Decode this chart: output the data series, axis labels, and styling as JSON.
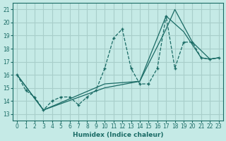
{
  "xlabel": "Humidex (Indice chaleur)",
  "ylabel": "",
  "bg_color": "#c5eae6",
  "grid_color": "#a8ceca",
  "line_color": "#1a6b65",
  "xlim": [
    -0.5,
    23.5
  ],
  "ylim": [
    12.5,
    21.5
  ],
  "xticks": [
    0,
    1,
    2,
    3,
    4,
    5,
    6,
    7,
    8,
    9,
    10,
    11,
    12,
    13,
    14,
    15,
    16,
    17,
    18,
    19,
    20,
    21,
    22,
    23
  ],
  "yticks": [
    13,
    14,
    15,
    16,
    17,
    18,
    19,
    20,
    21
  ],
  "series1_x": [
    0,
    1,
    2,
    3,
    4,
    5,
    6,
    7,
    8,
    9,
    10,
    11,
    12,
    13,
    14,
    15,
    16,
    17,
    18,
    19,
    20,
    21,
    22,
    23
  ],
  "series1_y": [
    16.0,
    14.8,
    14.3,
    13.3,
    14.0,
    14.3,
    14.3,
    13.7,
    14.3,
    14.8,
    16.5,
    18.8,
    19.5,
    16.5,
    15.3,
    15.3,
    16.5,
    20.5,
    16.5,
    18.5,
    18.5,
    17.3,
    17.2,
    17.3
  ],
  "series2_x": [
    0,
    3,
    10,
    14,
    17,
    19,
    21,
    22,
    23
  ],
  "series2_y": [
    16.0,
    13.3,
    15.3,
    15.5,
    20.5,
    19.3,
    17.3,
    17.2,
    17.3
  ],
  "series3_x": [
    0,
    3,
    10,
    14,
    17,
    18,
    20,
    22,
    23
  ],
  "series3_y": [
    16.0,
    13.3,
    15.0,
    15.5,
    19.5,
    21.0,
    18.5,
    17.2,
    17.3
  ]
}
